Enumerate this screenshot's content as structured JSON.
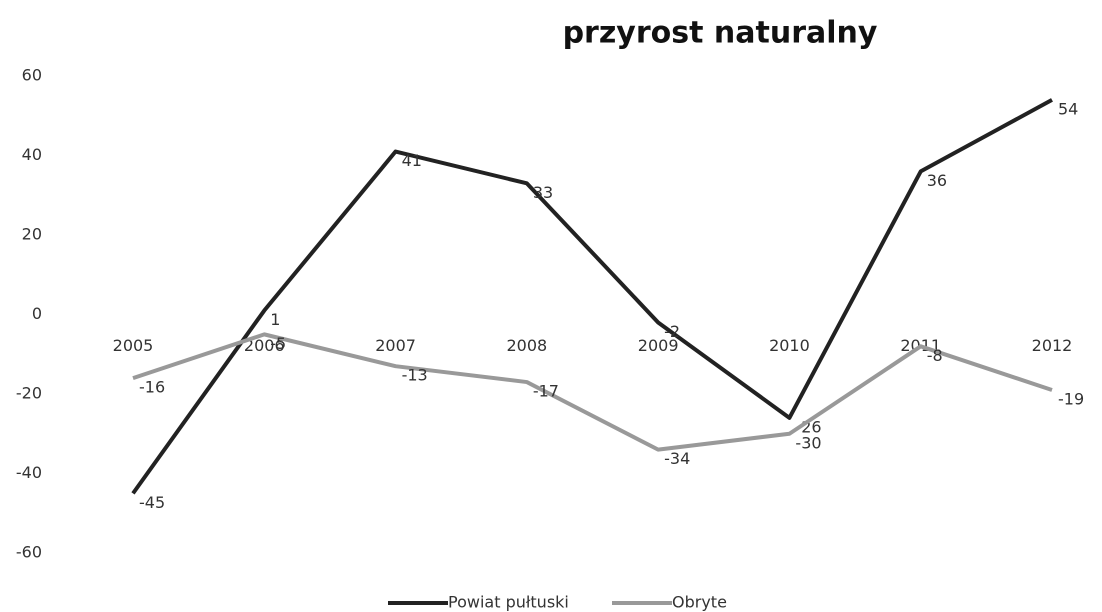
{
  "chart_data": {
    "type": "line",
    "title": "przyrost naturalny",
    "categories": [
      "2005",
      "2006",
      "2007",
      "2008",
      "2009",
      "2010",
      "2011",
      "2012"
    ],
    "series": [
      {
        "name": "Powiat pułtuski",
        "color": "#222222",
        "values": [
          -45,
          1,
          41,
          33,
          -2,
          -26,
          36,
          54
        ]
      },
      {
        "name": "Obryte",
        "color": "#999999",
        "values": [
          -16,
          -5,
          -13,
          -17,
          -34,
          -30,
          -8,
          -19
        ]
      }
    ],
    "ylim": [
      -60,
      60
    ],
    "yticks": [
      -60,
      -40,
      -20,
      0,
      20,
      40,
      60
    ],
    "grid": false,
    "legend": "bottom"
  }
}
